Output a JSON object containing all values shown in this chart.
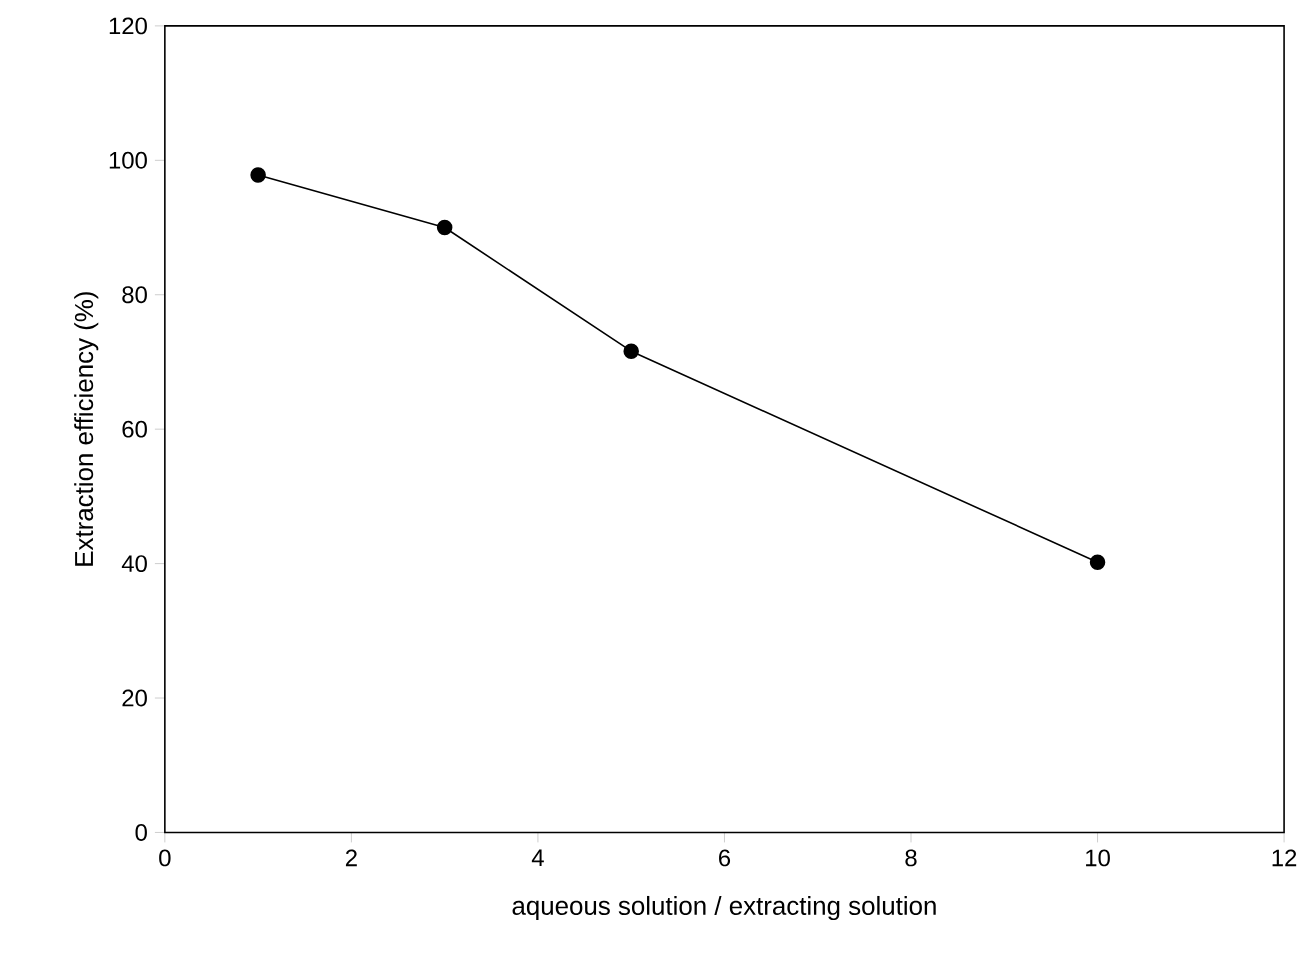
{
  "chart_data": {
    "type": "line",
    "xlabel": "aqueous solution / extracting solution",
    "ylabel": "Extraction efficiency (%)",
    "x": [
      1,
      3,
      5,
      10
    ],
    "values": [
      97.8,
      90.0,
      71.6,
      40.2
    ],
    "color": "#000000",
    "marker": "circle",
    "line_style": "solid",
    "xlim": [
      0,
      12
    ],
    "ylim": [
      0,
      120
    ],
    "xticks": [
      0,
      2,
      4,
      6,
      8,
      10,
      12
    ],
    "yticks": [
      0,
      20,
      40,
      60,
      80,
      100,
      120
    ]
  }
}
